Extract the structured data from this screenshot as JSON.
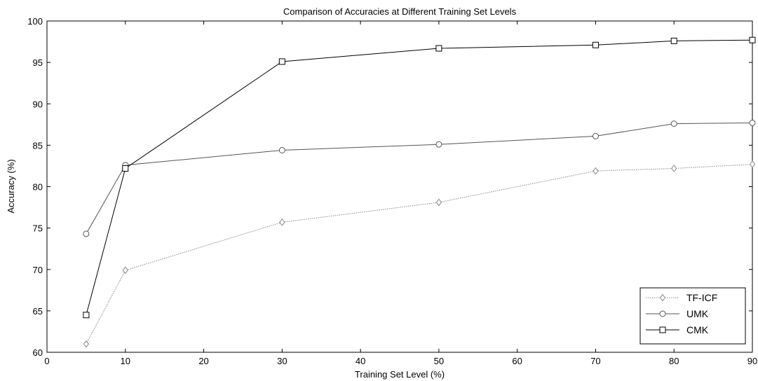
{
  "chart_data": {
    "type": "line",
    "title": "Comparison of Accuracies at Different Training Set Levels",
    "xlabel": "Training Set Level (%)",
    "ylabel": "Accuracy (%)",
    "xlim": [
      0,
      90
    ],
    "ylim": [
      60,
      100
    ],
    "xticks": [
      0,
      10,
      20,
      30,
      40,
      50,
      60,
      70,
      80,
      90
    ],
    "yticks": [
      60,
      65,
      70,
      75,
      80,
      85,
      90,
      95,
      100
    ],
    "grid": false,
    "legend_position": "bottom-right",
    "x": [
      5,
      10,
      30,
      50,
      70,
      80,
      90
    ],
    "series": [
      {
        "name": "TF-ICF",
        "values": [
          61.0,
          69.9,
          75.7,
          78.1,
          81.9,
          82.2,
          82.7
        ],
        "color": "#888888",
        "marker": "diamond",
        "line_style": "dotted"
      },
      {
        "name": "UMK",
        "values": [
          74.3,
          82.6,
          84.4,
          85.1,
          86.1,
          87.6,
          87.7
        ],
        "color": "#555555",
        "marker": "circle",
        "line_style": "solid"
      },
      {
        "name": "CMK",
        "values": [
          64.5,
          82.2,
          95.1,
          96.7,
          97.1,
          97.6,
          97.7
        ],
        "color": "#000000",
        "marker": "square",
        "line_style": "solid"
      }
    ]
  }
}
